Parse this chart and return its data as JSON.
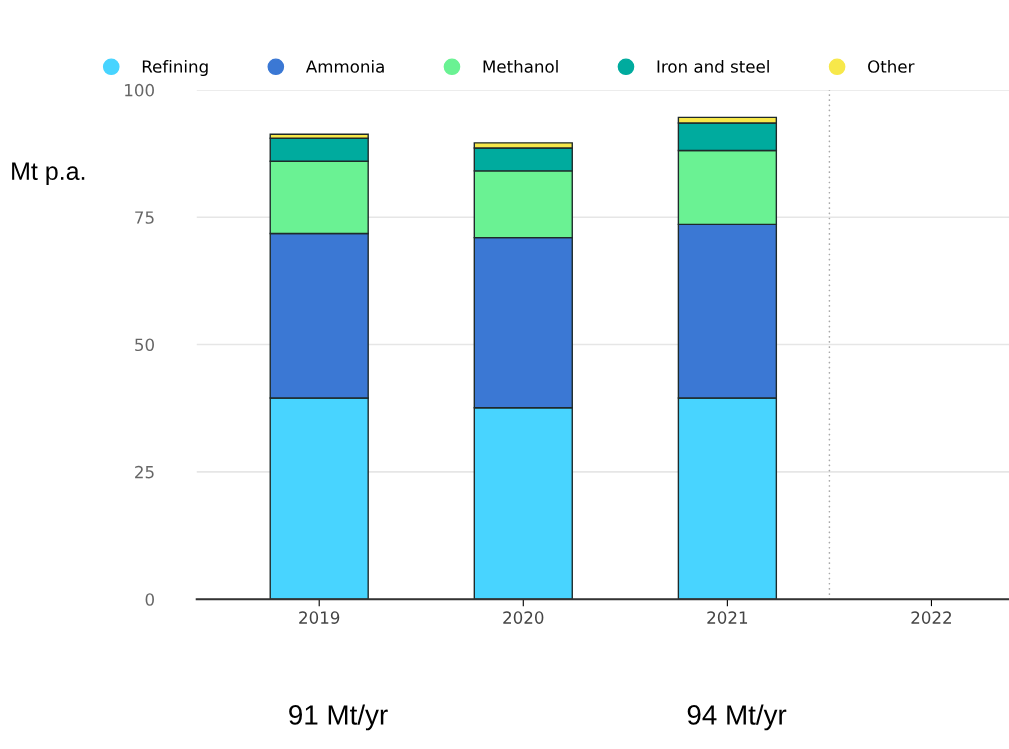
{
  "chart_data": {
    "type": "bar",
    "stacked": true,
    "ylabel": "Mt p.a.",
    "categories": [
      "2019",
      "2020",
      "2021",
      "2022"
    ],
    "series": [
      {
        "name": "Refining",
        "color": "#48d4ff",
        "values": [
          39.5,
          37.6,
          39.5,
          null
        ]
      },
      {
        "name": "Ammonia",
        "color": "#3b78d4",
        "values": [
          32.3,
          33.4,
          34.1,
          null
        ]
      },
      {
        "name": "Methanol",
        "color": "#6af293",
        "values": [
          14.2,
          13.1,
          14.5,
          null
        ]
      },
      {
        "name": "Iron and steel",
        "color": "#00ab9e",
        "values": [
          4.5,
          4.5,
          5.4,
          null
        ]
      },
      {
        "name": "Other",
        "color": "#f7e84a",
        "values": [
          0.8,
          1.0,
          1.1,
          null
        ]
      }
    ],
    "ylim": [
      0,
      100
    ],
    "yticks": [
      0,
      25,
      50,
      75,
      100
    ],
    "grid": "y",
    "legend": "top",
    "marker": "circle",
    "annotations": [
      "91 Mt/yr",
      "94 Mt/yr"
    ]
  }
}
